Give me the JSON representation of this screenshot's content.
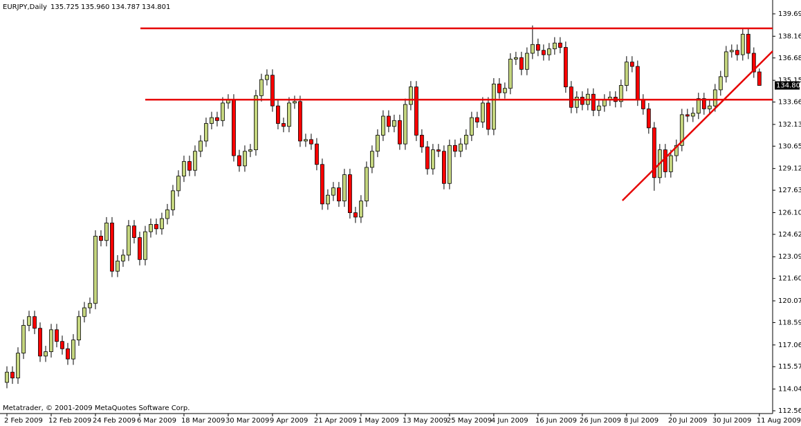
{
  "chart_data": {
    "type": "candlestick",
    "title": "EURJPY,Daily",
    "quote": [
      "135.725",
      "135.960",
      "134.787",
      "134.801"
    ],
    "footer": "Metatrader, © 2001-2009 MetaQuotes Software Corp.",
    "bull_color": "#c5d67f",
    "bear_color": "#ff0000",
    "line_color": "#e60000",
    "open": [
      114.5,
      115.2,
      114.8,
      116.5,
      118.4,
      119.0,
      118.2,
      116.3,
      116.6,
      118.1,
      117.3,
      116.8,
      116.1,
      117.4,
      119.0,
      119.6,
      119.9,
      124.5,
      124.2,
      125.4,
      122.1,
      122.8,
      123.2,
      125.2,
      124.4,
      122.9,
      124.8,
      125.3,
      125.0,
      125.7,
      126.3,
      127.6,
      128.6,
      129.6,
      129.0,
      130.3,
      131.0,
      132.2,
      132.6,
      132.4,
      133.6,
      133.8,
      130.0,
      129.3,
      130.3,
      130.4,
      134.1,
      135.2,
      135.5,
      133.4,
      132.2,
      132.0,
      133.6,
      133.7,
      131.0,
      131.1,
      130.8,
      129.4,
      126.7,
      127.3,
      127.8,
      126.9,
      128.7,
      126.1,
      125.8,
      126.9,
      129.2,
      130.3,
      131.4,
      132.7,
      132.0,
      132.4,
      130.8,
      133.5,
      134.7,
      131.4,
      130.6,
      129.1,
      130.4,
      130.3,
      128.1,
      130.7,
      130.3,
      130.8,
      131.4,
      132.6,
      132.3,
      133.6,
      131.8,
      134.9,
      134.3,
      134.6,
      136.6,
      136.7,
      135.9,
      137.0,
      137.6,
      137.2,
      136.9,
      137.3,
      137.7,
      137.4,
      134.7,
      133.3,
      134.0,
      133.5,
      134.2,
      133.1,
      133.4,
      133.8,
      134.0,
      133.7,
      134.8,
      136.4,
      136.1,
      133.8,
      133.2,
      131.9,
      128.5,
      130.4,
      128.9,
      130.0,
      130.7,
      132.8,
      132.7,
      132.9,
      133.9,
      133.2,
      133.4,
      134.5,
      135.4,
      137.1,
      137.2,
      136.9,
      138.3,
      137.0,
      135.725
    ],
    "high": [
      115.6,
      115.6,
      116.9,
      118.8,
      119.4,
      119.4,
      118.6,
      117.0,
      118.5,
      118.5,
      117.7,
      117.2,
      117.8,
      119.4,
      120.0,
      120.3,
      124.9,
      124.9,
      125.8,
      125.8,
      123.2,
      123.6,
      125.6,
      125.6,
      124.8,
      125.2,
      125.7,
      125.7,
      126.1,
      126.7,
      128.0,
      129.0,
      130.0,
      130.0,
      130.7,
      131.4,
      132.6,
      133.0,
      133.0,
      134.0,
      134.2,
      134.2,
      130.4,
      130.7,
      130.8,
      134.5,
      135.6,
      135.9,
      135.9,
      133.8,
      132.6,
      134.0,
      134.1,
      134.1,
      131.5,
      131.5,
      131.2,
      129.8,
      127.7,
      128.2,
      128.2,
      129.1,
      129.1,
      126.5,
      127.3,
      129.6,
      130.7,
      131.8,
      133.1,
      133.1,
      132.8,
      132.8,
      133.9,
      135.1,
      135.1,
      131.8,
      131.0,
      130.8,
      130.8,
      130.7,
      131.1,
      131.1,
      131.2,
      131.8,
      133.0,
      133.0,
      134.0,
      134.0,
      135.3,
      135.3,
      135.0,
      137.0,
      137.1,
      137.1,
      137.4,
      138.9,
      138.0,
      137.6,
      137.7,
      138.1,
      138.1,
      137.8,
      135.1,
      134.4,
      134.4,
      134.6,
      134.6,
      133.8,
      134.2,
      134.4,
      134.4,
      135.2,
      136.8,
      136.8,
      136.5,
      134.2,
      133.6,
      132.3,
      130.8,
      130.8,
      130.4,
      131.1,
      133.2,
      133.2,
      133.3,
      134.3,
      134.3,
      133.8,
      134.9,
      135.8,
      137.5,
      137.6,
      137.6,
      138.7,
      138.7,
      137.4,
      135.96
    ],
    "low": [
      114.1,
      114.4,
      114.4,
      116.1,
      118.0,
      117.8,
      115.9,
      115.9,
      116.2,
      116.9,
      116.4,
      115.7,
      115.7,
      117.0,
      118.6,
      119.2,
      119.5,
      123.8,
      123.8,
      121.7,
      121.7,
      122.4,
      122.8,
      124.0,
      122.5,
      122.5,
      124.4,
      124.6,
      124.6,
      125.3,
      125.9,
      127.2,
      128.2,
      128.6,
      128.6,
      129.9,
      130.6,
      131.8,
      132.0,
      132.0,
      133.2,
      129.6,
      128.9,
      128.9,
      129.9,
      130.0,
      133.7,
      134.8,
      133.0,
      131.8,
      131.6,
      131.6,
      133.2,
      130.6,
      130.6,
      130.4,
      129.0,
      126.3,
      126.3,
      126.9,
      126.5,
      126.5,
      125.7,
      125.4,
      125.4,
      126.5,
      128.8,
      129.9,
      131.0,
      131.6,
      131.6,
      130.4,
      130.4,
      133.1,
      131.0,
      130.2,
      128.7,
      128.7,
      129.9,
      127.7,
      127.7,
      129.9,
      129.9,
      130.4,
      131.0,
      131.9,
      131.9,
      131.4,
      131.4,
      133.9,
      133.9,
      134.2,
      136.2,
      135.5,
      135.5,
      136.6,
      136.8,
      136.5,
      136.5,
      136.9,
      137.0,
      134.3,
      132.9,
      132.9,
      133.1,
      133.1,
      132.7,
      132.7,
      133.0,
      133.4,
      133.3,
      133.3,
      134.4,
      135.7,
      133.4,
      132.8,
      131.5,
      127.6,
      128.1,
      128.5,
      128.5,
      129.6,
      130.3,
      132.3,
      132.3,
      132.5,
      132.8,
      132.8,
      133.0,
      134.1,
      135.0,
      136.7,
      136.5,
      136.5,
      136.6,
      135.32,
      134.787
    ],
    "close": [
      115.2,
      114.8,
      116.5,
      118.4,
      119.0,
      118.2,
      116.3,
      116.6,
      118.1,
      117.3,
      116.8,
      116.1,
      117.4,
      119.0,
      119.6,
      119.9,
      124.5,
      124.2,
      125.4,
      122.1,
      122.8,
      123.2,
      125.2,
      124.4,
      122.9,
      124.8,
      125.3,
      125.0,
      125.7,
      126.3,
      127.6,
      128.6,
      129.6,
      129.0,
      130.3,
      131.0,
      132.2,
      132.6,
      132.4,
      133.6,
      133.8,
      130.0,
      129.3,
      130.3,
      130.4,
      134.1,
      135.2,
      135.5,
      133.4,
      132.2,
      132.0,
      133.6,
      133.7,
      131.0,
      131.1,
      130.8,
      129.4,
      126.7,
      127.3,
      127.8,
      126.9,
      128.7,
      126.1,
      125.8,
      126.9,
      129.2,
      130.3,
      131.4,
      132.7,
      132.0,
      132.4,
      130.8,
      133.5,
      134.7,
      131.4,
      130.6,
      129.1,
      130.4,
      130.3,
      128.1,
      130.7,
      130.3,
      130.8,
      131.4,
      132.6,
      132.3,
      133.6,
      131.8,
      134.9,
      134.3,
      134.6,
      136.6,
      136.7,
      135.9,
      137.0,
      137.6,
      137.2,
      136.9,
      137.3,
      137.7,
      137.4,
      134.7,
      133.3,
      134.0,
      133.5,
      134.2,
      133.1,
      133.4,
      133.8,
      134.0,
      133.7,
      134.8,
      136.4,
      136.1,
      133.8,
      133.2,
      131.9,
      128.5,
      130.4,
      128.9,
      130.0,
      130.7,
      132.8,
      132.7,
      132.9,
      133.9,
      133.2,
      133.4,
      134.5,
      135.4,
      137.1,
      137.2,
      136.9,
      138.3,
      137.0,
      135.72,
      134.801
    ],
    "levels": [
      138.7,
      133.83
    ],
    "trendline": {
      "x": [
        111.25,
        138.4
      ],
      "y": [
        126.93,
        137.14
      ]
    },
    "xlim": [
      -1.25,
      138.4
    ],
    "xticks": [
      {
        "value": 0,
        "label": "2 Feb 2009"
      },
      {
        "value": 8,
        "label": "12 Feb 2009"
      },
      {
        "value": 16,
        "label": "24 Feb 2009"
      },
      {
        "value": 24,
        "label": "6 Mar 2009"
      },
      {
        "value": 32,
        "label": "18 Mar 2009"
      },
      {
        "value": 40,
        "label": "30 Mar 2009"
      },
      {
        "value": 48,
        "label": "9 Apr 2009"
      },
      {
        "value": 56,
        "label": "21 Apr 2009"
      },
      {
        "value": 64,
        "label": "1 May 2009"
      },
      {
        "value": 72,
        "label": "13 May 2009"
      },
      {
        "value": 80,
        "label": "25 May 2009"
      },
      {
        "value": 88,
        "label": "4 Jun 2009"
      },
      {
        "value": 96,
        "label": "16 Jun 2009"
      },
      {
        "value": 104,
        "label": "26 Jun 2009"
      },
      {
        "value": 112,
        "label": "8 Jul 2009"
      },
      {
        "value": 120,
        "label": "20 Jul 2009"
      },
      {
        "value": 128,
        "label": "30 Jul 2009"
      },
      {
        "value": 136,
        "label": "11 Aug 2009"
      }
    ],
    "ylim": [
      112.465,
      140.546
    ],
    "yticks": [
      139.695,
      138.165,
      {
        "value": 136.68,
        "label": "136.680"
      },
      {
        "value": 135.15,
        "label": "135.150"
      },
      133.665,
      132.135,
      {
        "value": 130.65,
        "label": "130.650"
      },
      {
        "value": 129.12,
        "label": "129.120"
      },
      127.635,
      126.105,
      {
        "value": 124.62,
        "label": "124.620"
      },
      {
        "value": 123.09,
        "label": "123.090"
      },
      121.605,
      120.075,
      {
        "value": 118.59,
        "label": "118.590"
      },
      {
        "value": 117.06,
        "label": "117.060"
      },
      115.575,
      114.045,
      {
        "value": 112.56,
        "label": "112.560"
      }
    ]
  }
}
